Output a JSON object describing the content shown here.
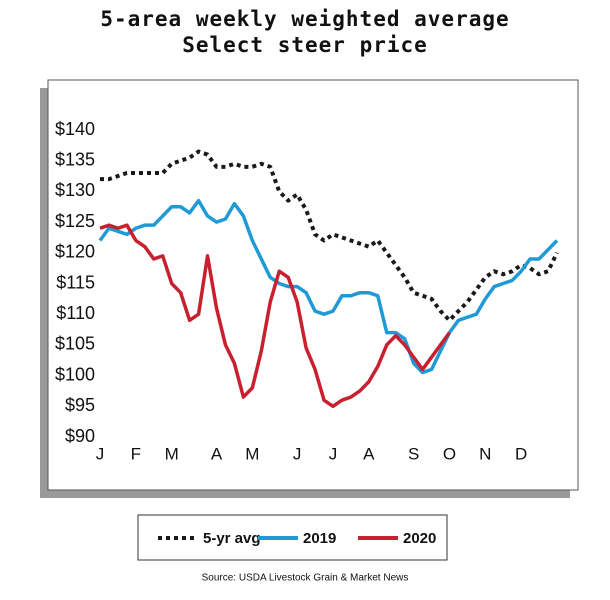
{
  "chart_data": {
    "type": "line",
    "title": [
      "5-area weekly weighted average",
      "Select steer price"
    ],
    "source": "Source: USDA Livestock Grain & Market News",
    "x": [
      1,
      2,
      3,
      4,
      5,
      6,
      7,
      8,
      9,
      10,
      11,
      12,
      13,
      14,
      15,
      16,
      17,
      18,
      19,
      20,
      21,
      22,
      23,
      24,
      25,
      26,
      27,
      28,
      29,
      30,
      31,
      32,
      33,
      34,
      35,
      36,
      37,
      38,
      39,
      40,
      41,
      42,
      43,
      44,
      45,
      46,
      47,
      48,
      49,
      50,
      51,
      52
    ],
    "xlim": [
      1,
      52
    ],
    "xticks": [
      {
        "value": 1,
        "label": "J"
      },
      {
        "value": 5,
        "label": "F"
      },
      {
        "value": 9,
        "label": "M"
      },
      {
        "value": 14,
        "label": "A"
      },
      {
        "value": 18,
        "label": "M"
      },
      {
        "value": 23,
        "label": "J"
      },
      {
        "value": 27,
        "label": "J"
      },
      {
        "value": 31,
        "label": "A"
      },
      {
        "value": 36,
        "label": "S"
      },
      {
        "value": 40,
        "label": "O"
      },
      {
        "value": 44,
        "label": "N"
      },
      {
        "value": 48,
        "label": "D"
      }
    ],
    "ylim": [
      90,
      140
    ],
    "yticks": [
      {
        "value": 140,
        "label": "$140"
      },
      {
        "value": 135,
        "label": "$135"
      },
      {
        "value": 130,
        "label": "$130"
      },
      {
        "value": 125,
        "label": "$125"
      },
      {
        "value": 120,
        "label": "$120"
      },
      {
        "value": 115,
        "label": "$115"
      },
      {
        "value": 110,
        "label": "$110"
      },
      {
        "value": 105,
        "label": "$105"
      },
      {
        "value": 100,
        "label": "$100"
      },
      {
        "value": 95,
        "label": "$95"
      },
      {
        "value": 90,
        "label": "$90"
      }
    ],
    "series": [
      {
        "name": "5-yr avg",
        "color": "#1a1a1a",
        "dashed": true,
        "values": [
          132,
          132,
          132.5,
          133,
          133,
          133,
          133,
          133,
          134.5,
          135,
          135.5,
          136.5,
          136,
          134,
          134,
          134.5,
          134,
          134,
          134.5,
          134,
          130,
          128.5,
          129.5,
          127,
          123,
          122,
          123,
          122.5,
          122,
          121.5,
          121,
          122,
          120,
          118,
          116,
          113.5,
          113,
          112.5,
          110.5,
          109,
          110.5,
          112,
          114,
          116,
          117,
          116.5,
          117,
          118,
          117.5,
          116.5,
          117,
          120
        ]
      },
      {
        "name": "2019",
        "color": "#1f9ad6",
        "dashed": false,
        "values": [
          122,
          124,
          123.5,
          123,
          124,
          124.5,
          124.5,
          126,
          127.5,
          127.5,
          126.5,
          128.5,
          126,
          125,
          125.5,
          128,
          126,
          122,
          119,
          116,
          115,
          114.5,
          114.5,
          113.5,
          110.5,
          110,
          110.5,
          113,
          113,
          113.5,
          113.5,
          113,
          107,
          107,
          106,
          102,
          100.5,
          101,
          104,
          107,
          109,
          109.5,
          110,
          112.5,
          114.5,
          115,
          115.5,
          117,
          119,
          119,
          120.5,
          122
        ]
      },
      {
        "name": "2020",
        "color": "#c8202f",
        "dashed": false,
        "values": [
          124,
          124.5,
          124,
          124.5,
          122,
          121,
          119,
          119.5,
          115,
          113.5,
          109,
          110,
          119.5,
          111,
          105,
          102,
          96.5,
          98,
          104,
          112,
          117,
          116,
          112,
          104.5,
          101,
          96,
          95,
          96,
          96.5,
          97.5,
          99,
          101.5,
          105,
          106.5,
          105,
          103,
          101,
          103,
          105,
          107,
          null,
          null,
          null,
          null,
          null,
          null,
          null,
          null,
          null,
          null,
          null,
          null
        ]
      }
    ]
  }
}
